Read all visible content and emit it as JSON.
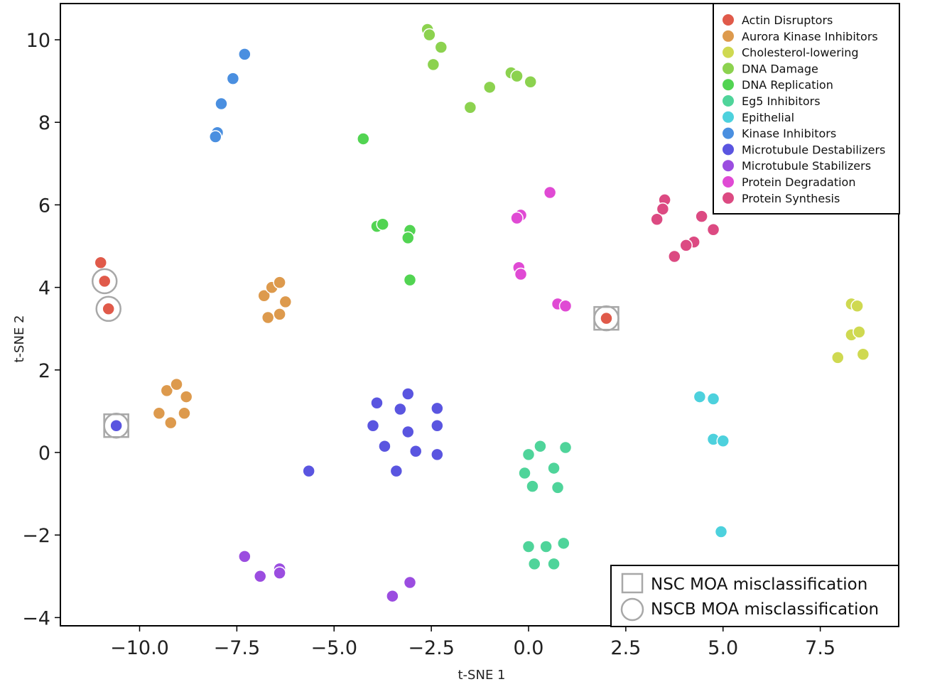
{
  "chart_data": {
    "type": "scatter",
    "title": "",
    "xlabel": "t-SNE 1",
    "ylabel": "t-SNE 2",
    "xlim": [
      -12.0,
      9.6
    ],
    "ylim": [
      -4.4,
      10.9
    ],
    "xticks": [
      -10.0,
      -7.5,
      -5.0,
      -2.5,
      0.0,
      2.5,
      5.0,
      7.5
    ],
    "xtick_labels": [
      "−10.0",
      "−7.5",
      "−5.0",
      "−2.5",
      "0.0",
      "2.5",
      "5.0",
      "7.5"
    ],
    "yticks": [
      -4,
      -2,
      0,
      2,
      4,
      6,
      8,
      10
    ],
    "ytick_labels": [
      "−4",
      "−2",
      "0",
      "2",
      "4",
      "6",
      "8",
      "10"
    ],
    "grid": false,
    "legend_position": "top-right",
    "series": [
      {
        "name": "Actin Disruptors",
        "color": "#e05a4a",
        "points": [
          [
            -11.0,
            4.6
          ],
          [
            -10.9,
            4.15
          ],
          [
            -10.8,
            3.48
          ],
          [
            2.0,
            3.25
          ]
        ]
      },
      {
        "name": "Aurora Kinase Inhibitors",
        "color": "#dd9a4d",
        "points": [
          [
            -6.8,
            3.8
          ],
          [
            -6.6,
            4.0
          ],
          [
            -6.4,
            4.12
          ],
          [
            -6.7,
            3.27
          ],
          [
            -6.4,
            3.35
          ],
          [
            -6.25,
            3.65
          ],
          [
            -9.3,
            1.5
          ],
          [
            -9.05,
            1.65
          ],
          [
            -8.8,
            1.35
          ],
          [
            -9.5,
            0.95
          ],
          [
            -8.85,
            0.95
          ],
          [
            -9.2,
            0.72
          ]
        ]
      },
      {
        "name": "Cholesterol-lowering",
        "color": "#cfd951",
        "points": [
          [
            8.3,
            3.6
          ],
          [
            8.45,
            3.55
          ],
          [
            8.3,
            2.85
          ],
          [
            8.5,
            2.92
          ],
          [
            8.6,
            2.38
          ],
          [
            7.95,
            2.3
          ]
        ]
      },
      {
        "name": "DNA Damage",
        "color": "#8cd24f",
        "points": [
          [
            -2.6,
            10.25
          ],
          [
            -2.55,
            10.12
          ],
          [
            -2.25,
            9.82
          ],
          [
            -2.45,
            9.4
          ],
          [
            -0.45,
            9.2
          ],
          [
            -0.3,
            9.12
          ],
          [
            0.05,
            8.98
          ],
          [
            -1.0,
            8.85
          ],
          [
            -1.5,
            8.36
          ]
        ]
      },
      {
        "name": "DNA Replication",
        "color": "#52d452",
        "points": [
          [
            -4.25,
            7.6
          ],
          [
            -3.9,
            5.48
          ],
          [
            -3.75,
            5.53
          ],
          [
            -3.05,
            5.38
          ],
          [
            -3.1,
            5.2
          ],
          [
            -3.05,
            4.18
          ]
        ]
      },
      {
        "name": "Eg5 Inhibitors",
        "color": "#4fd49a",
        "points": [
          [
            0.3,
            0.15
          ],
          [
            0.0,
            -0.05
          ],
          [
            0.95,
            0.12
          ],
          [
            -0.1,
            -0.5
          ],
          [
            0.65,
            -0.38
          ],
          [
            0.1,
            -0.82
          ],
          [
            0.75,
            -0.85
          ],
          [
            0.0,
            -2.28
          ],
          [
            0.45,
            -2.28
          ],
          [
            0.9,
            -2.2
          ],
          [
            0.15,
            -2.7
          ],
          [
            0.65,
            -2.7
          ]
        ]
      },
      {
        "name": "Epithelial",
        "color": "#4dd1dd",
        "points": [
          [
            4.4,
            1.35
          ],
          [
            4.75,
            1.3
          ],
          [
            4.75,
            0.32
          ],
          [
            5.0,
            0.28
          ],
          [
            4.95,
            -1.92
          ]
        ]
      },
      {
        "name": "Kinase Inhibitors",
        "color": "#4a8fe0",
        "points": [
          [
            -7.3,
            9.65
          ],
          [
            -7.6,
            9.06
          ],
          [
            -7.9,
            8.45
          ],
          [
            -8.0,
            7.75
          ],
          [
            -8.05,
            7.65
          ]
        ]
      },
      {
        "name": "Microtubule Destabilizers",
        "color": "#5a55e0",
        "points": [
          [
            -10.6,
            0.65
          ],
          [
            -3.1,
            1.42
          ],
          [
            -3.9,
            1.2
          ],
          [
            -3.3,
            1.05
          ],
          [
            -2.35,
            1.07
          ],
          [
            -4.0,
            0.65
          ],
          [
            -3.1,
            0.5
          ],
          [
            -2.35,
            0.65
          ],
          [
            -3.7,
            0.15
          ],
          [
            -2.9,
            0.03
          ],
          [
            -2.35,
            -0.05
          ],
          [
            -3.4,
            -0.45
          ],
          [
            -5.65,
            -0.45
          ]
        ]
      },
      {
        "name": "Microtubule Stabilizers",
        "color": "#9b4de0",
        "points": [
          [
            -7.3,
            -2.52
          ],
          [
            -6.4,
            -2.82
          ],
          [
            -6.4,
            -2.92
          ],
          [
            -6.9,
            -3.0
          ],
          [
            -3.05,
            -3.15
          ],
          [
            -3.5,
            -3.48
          ]
        ]
      },
      {
        "name": "Protein Degradation",
        "color": "#e04ad4",
        "points": [
          [
            0.55,
            6.3
          ],
          [
            -0.2,
            5.75
          ],
          [
            -0.3,
            5.68
          ],
          [
            -0.25,
            4.48
          ],
          [
            -0.2,
            4.32
          ],
          [
            0.75,
            3.6
          ],
          [
            0.95,
            3.55
          ]
        ]
      },
      {
        "name": "Protein Synthesis",
        "color": "#dc4a82",
        "points": [
          [
            3.5,
            6.12
          ],
          [
            3.45,
            5.9
          ],
          [
            3.3,
            5.65
          ],
          [
            4.45,
            5.72
          ],
          [
            4.75,
            5.4
          ],
          [
            4.25,
            5.1
          ],
          [
            4.05,
            5.02
          ],
          [
            3.75,
            4.75
          ]
        ]
      }
    ],
    "misclassified_nsc": [
      [
        -10.6,
        0.65
      ],
      [
        2.0,
        3.25
      ]
    ],
    "misclassified_nscb": [
      [
        -10.9,
        4.15
      ],
      [
        -10.8,
        3.48
      ],
      [
        -10.6,
        0.65
      ],
      [
        2.0,
        3.25
      ]
    ],
    "secondary_legend": [
      "NSC MOA misclassification",
      "NSCB MOA misclassification"
    ]
  }
}
